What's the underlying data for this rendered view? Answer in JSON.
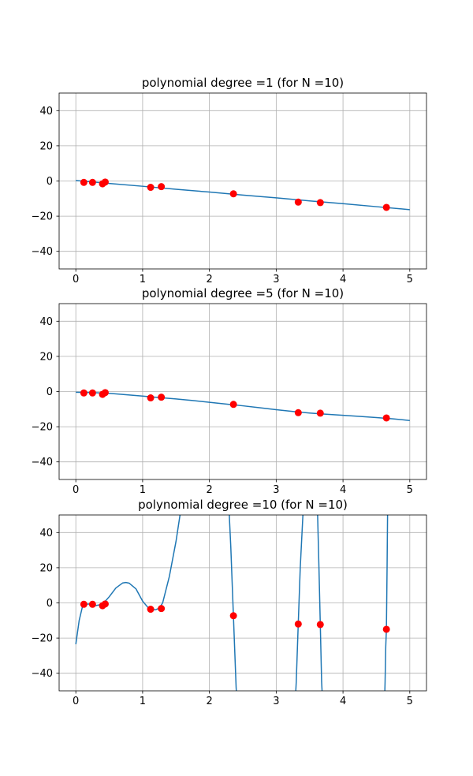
{
  "colors": {
    "curve": "#1f77b4",
    "points": "#ff0000",
    "grid": "#b0b0b0",
    "axes": "#000000"
  },
  "chart_data": [
    {
      "type": "line",
      "title": "polynomial degree =1 (for N =10)",
      "xlabel": "",
      "ylabel": "",
      "xlim": [
        -0.25,
        5.25
      ],
      "ylim": [
        -50,
        50
      ],
      "xticks": [
        0,
        1,
        2,
        3,
        4,
        5
      ],
      "yticks": [
        -40,
        -20,
        0,
        20,
        40
      ],
      "grid": true,
      "series": [
        {
          "kind": "line",
          "x": [
            0,
            0.5,
            1,
            1.5,
            2,
            2.5,
            3,
            3.5,
            4,
            4.5,
            5
          ],
          "y": [
            0.3,
            -1.4,
            -3.0,
            -4.7,
            -6.3,
            -8.0,
            -9.6,
            -11.3,
            -12.9,
            -14.6,
            -16.3
          ]
        },
        {
          "kind": "scatter",
          "x": [
            0.12,
            0.25,
            0.4,
            0.44,
            1.12,
            1.28,
            2.36,
            3.33,
            3.66,
            4.65
          ],
          "y": [
            -0.8,
            -0.8,
            -1.6,
            -0.6,
            -3.6,
            -3.2,
            -7.3,
            -12.0,
            -12.3,
            -15.0
          ]
        }
      ]
    },
    {
      "type": "line",
      "title": "polynomial degree =5 (for N =10)",
      "xlabel": "",
      "ylabel": "",
      "xlim": [
        -0.25,
        5.25
      ],
      "ylim": [
        -50,
        50
      ],
      "xticks": [
        0,
        1,
        2,
        3,
        4,
        5
      ],
      "yticks": [
        -40,
        -20,
        0,
        20,
        40
      ],
      "grid": true,
      "series": [
        {
          "kind": "line",
          "x": [
            0,
            0.25,
            0.5,
            0.75,
            1,
            1.25,
            1.5,
            1.75,
            2,
            2.25,
            2.5,
            2.75,
            3,
            3.25,
            3.5,
            3.75,
            4,
            4.25,
            4.5,
            4.75,
            5
          ],
          "y": [
            -0.4,
            -0.6,
            -1.0,
            -1.8,
            -2.6,
            -3.4,
            -4.2,
            -5.1,
            -6.1,
            -7.1,
            -8.1,
            -9.2,
            -10.3,
            -11.3,
            -12.2,
            -12.9,
            -13.5,
            -14.1,
            -14.8,
            -15.5,
            -16.5
          ]
        },
        {
          "kind": "scatter",
          "x": [
            0.12,
            0.25,
            0.4,
            0.44,
            1.12,
            1.28,
            2.36,
            3.33,
            3.66,
            4.65
          ],
          "y": [
            -0.8,
            -0.8,
            -1.6,
            -0.6,
            -3.6,
            -3.2,
            -7.3,
            -12.0,
            -12.3,
            -15.0
          ]
        }
      ]
    },
    {
      "type": "line",
      "title": "polynomial degree =10 (for N =10)",
      "xlabel": "",
      "ylabel": "",
      "xlim": [
        -0.25,
        5.25
      ],
      "ylim": [
        -50,
        50
      ],
      "xticks": [
        0,
        1,
        2,
        3,
        4,
        5
      ],
      "yticks": [
        -40,
        -20,
        0,
        20,
        40
      ],
      "grid": true,
      "series": [
        {
          "kind": "line",
          "x": [
            0,
            0.05,
            0.1,
            0.15,
            0.2,
            0.3,
            0.4,
            0.5,
            0.6,
            0.7,
            0.75,
            0.8,
            0.9,
            1.0,
            1.1,
            1.15,
            1.2,
            1.25,
            1.3,
            1.4,
            1.5,
            1.56,
            1.62
          ],
          "y": [
            -23.5,
            -10,
            -2,
            -0.8,
            -0.6,
            -1.5,
            -0.8,
            3.5,
            8.5,
            11.3,
            11.6,
            11.2,
            8,
            1,
            -3.5,
            -4.0,
            -3.8,
            -3.0,
            0,
            15,
            35,
            50,
            65
          ]
        },
        {
          "kind": "line",
          "x": [
            2.29,
            2.3,
            2.32,
            2.34,
            2.36,
            2.38,
            2.4,
            2.42
          ],
          "y": [
            60,
            48,
            32,
            12,
            -8,
            -28,
            -48,
            -62
          ]
        },
        {
          "kind": "line",
          "x": [
            3.28,
            3.3,
            3.33,
            3.36,
            3.4,
            3.44
          ],
          "y": [
            -60,
            -45,
            -12,
            20,
            50,
            62
          ]
        },
        {
          "kind": "line",
          "x": [
            3.6,
            3.62,
            3.64,
            3.66,
            3.68,
            3.7
          ],
          "y": [
            62,
            50,
            20,
            -12,
            -45,
            -60
          ]
        },
        {
          "kind": "line",
          "x": [
            4.62,
            4.63,
            4.64,
            4.65,
            4.66,
            4.67
          ],
          "y": [
            -60,
            -45,
            -25,
            -15,
            20,
            62
          ]
        },
        {
          "kind": "scatter",
          "x": [
            0.12,
            0.25,
            0.4,
            0.44,
            1.12,
            1.28,
            2.36,
            3.33,
            3.66,
            4.65
          ],
          "y": [
            -0.8,
            -0.8,
            -1.6,
            -0.6,
            -3.6,
            -3.2,
            -7.3,
            -12.0,
            -12.3,
            -15.0
          ]
        }
      ]
    }
  ]
}
